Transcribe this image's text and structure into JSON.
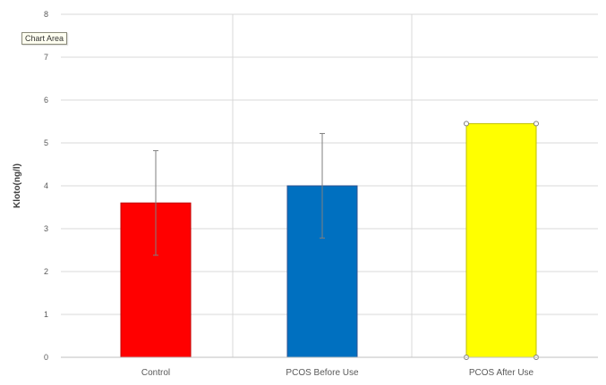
{
  "tooltip": {
    "label": "Chart Area"
  },
  "colors": {
    "control": "#ff0000",
    "before": "#0070c0",
    "after": "#ffff00",
    "grid": "#d9d9d9",
    "axis": "#bfbfbf",
    "error_bar": "#7f7f7f",
    "text": "#595959"
  },
  "chart_data": {
    "type": "bar",
    "title": "",
    "xlabel": "",
    "ylabel": "Kloto(ng/l)",
    "ylim": [
      0,
      8
    ],
    "yticks": [
      "0",
      "1",
      "2",
      "3",
      "4",
      "5",
      "6",
      "7",
      "8"
    ],
    "grid": true,
    "categories": [
      "Control",
      "PCOS Before Use",
      "PCOS After Use"
    ],
    "values": [
      3.6,
      4.0,
      5.45
    ],
    "error_bars": [
      1.22,
      1.22,
      0
    ],
    "bar_colors": [
      "#ff0000",
      "#0070c0",
      "#ffff00"
    ],
    "selected_bar": "PCOS After Use"
  }
}
